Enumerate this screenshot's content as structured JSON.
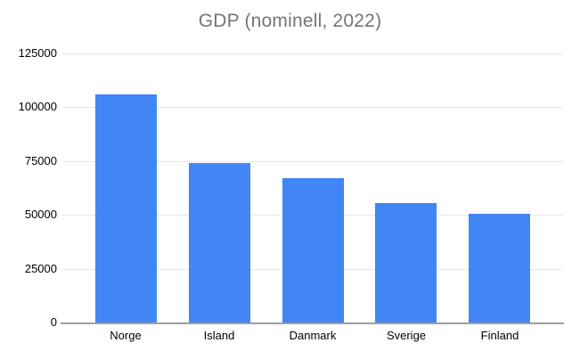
{
  "chart_data": {
    "type": "bar",
    "title": "GDP (nominell, 2022)",
    "categories": [
      "Norge",
      "Island",
      "Danmark",
      "Sverige",
      "Finland"
    ],
    "values": [
      106000,
      74000,
      67000,
      55500,
      50500
    ],
    "xlabel": "",
    "ylabel": "",
    "ylim": [
      0,
      125000
    ],
    "yticks": [
      0,
      25000,
      50000,
      75000,
      100000,
      125000
    ],
    "grid": true,
    "legend": "none",
    "bar_color": "#4285f4",
    "colors": {
      "title_text": "#757575",
      "axis_label_text": "#000000",
      "gridline": "#e6e6e6",
      "axis_line": "#9e9e9e",
      "background": "#ffffff"
    }
  }
}
